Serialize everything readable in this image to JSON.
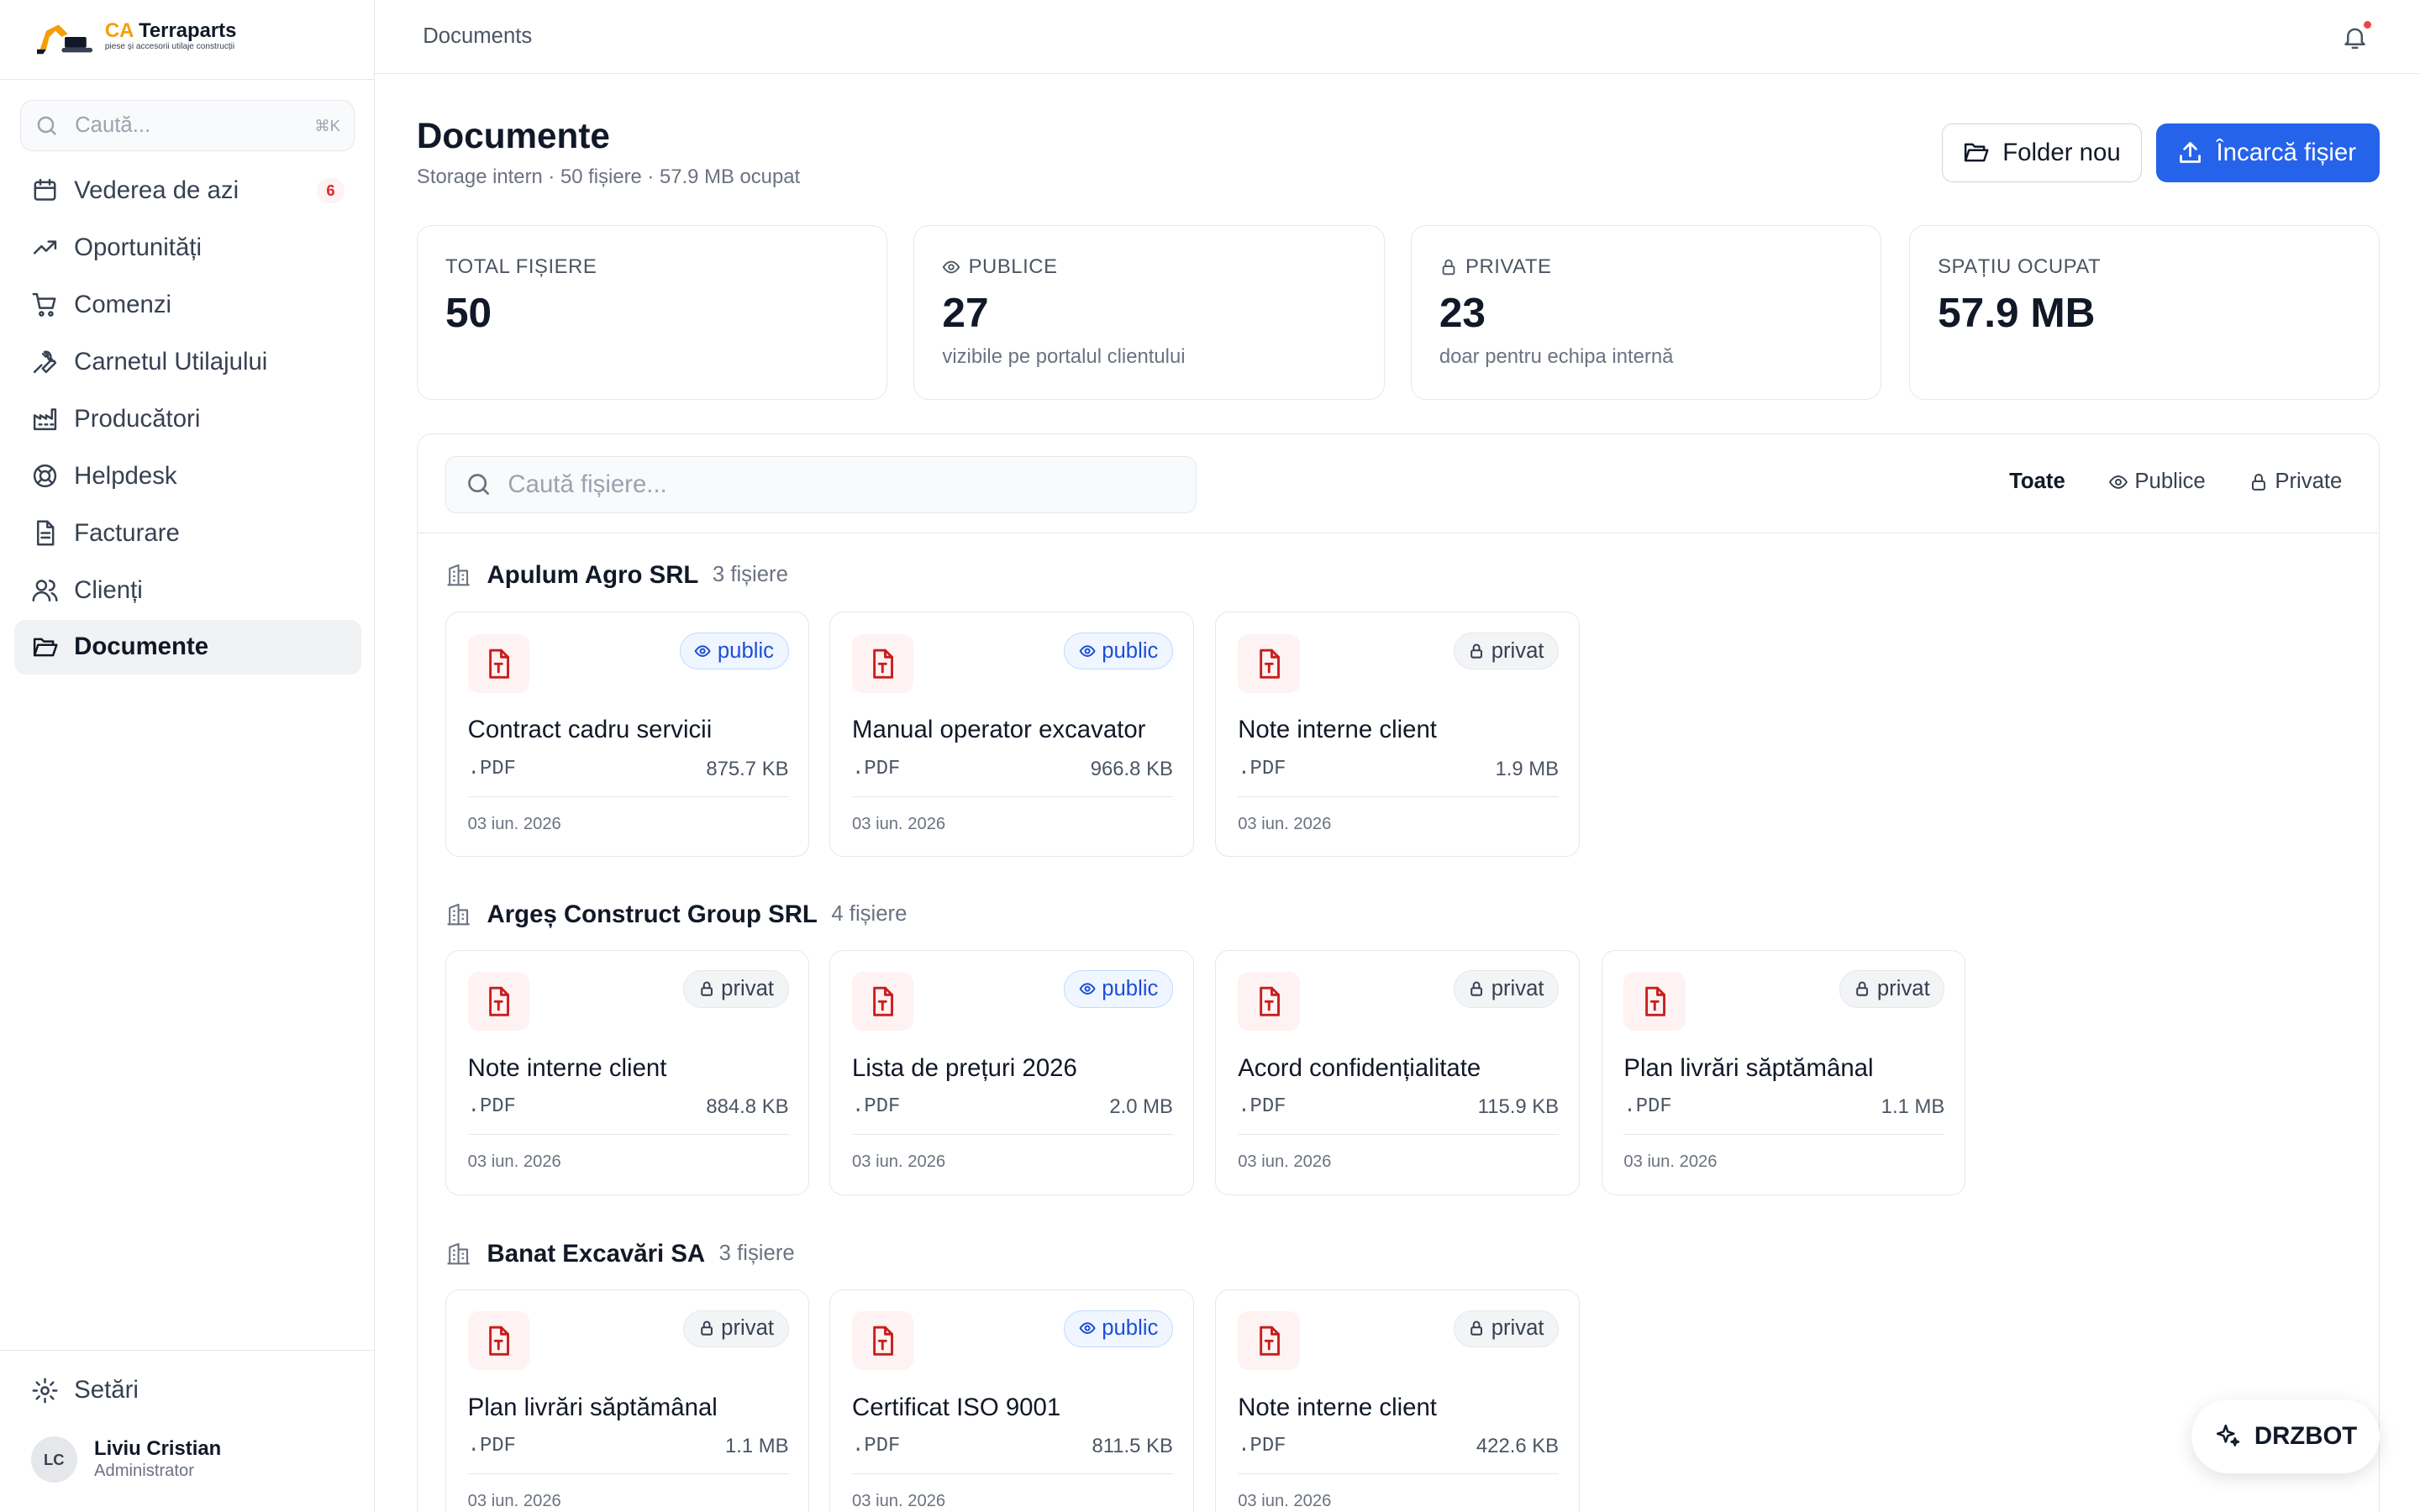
{
  "brand": {
    "name_accent": "CA",
    "name": "Terraparts",
    "tagline": "piese și accesorii utilaje construcții"
  },
  "sidebar": {
    "search_placeholder": "Caută...",
    "search_shortcut": "⌘K",
    "items": [
      {
        "label": "Vederea de azi",
        "icon": "calendar-icon",
        "badge": "6"
      },
      {
        "label": "Oportunități",
        "icon": "trending-up-icon"
      },
      {
        "label": "Comenzi",
        "icon": "cart-icon"
      },
      {
        "label": "Carnetul Utilajului",
        "icon": "wrench-icon"
      },
      {
        "label": "Producători",
        "icon": "factory-icon"
      },
      {
        "label": "Helpdesk",
        "icon": "lifebuoy-icon"
      },
      {
        "label": "Facturare",
        "icon": "invoice-icon"
      },
      {
        "label": "Clienți",
        "icon": "users-icon"
      },
      {
        "label": "Documente",
        "icon": "folder-open-icon",
        "active": true
      }
    ],
    "settings_label": "Setări",
    "user": {
      "initials": "LC",
      "name": "Liviu Cristian",
      "role": "Administrator"
    }
  },
  "topbar": {
    "breadcrumb": "Documents"
  },
  "header": {
    "title": "Documente",
    "subtitle": "Storage intern · 50 fișiere · 57.9 MB ocupat",
    "folder_button": "Folder nou",
    "upload_button": "Încarcă fișier"
  },
  "stats": [
    {
      "label": "TOTAL FIȘIERE",
      "value": "50",
      "desc": ""
    },
    {
      "label": "PUBLICE",
      "value": "27",
      "desc": "vizibile pe portalul clientului"
    },
    {
      "label": "PRIVATE",
      "value": "23",
      "desc": "doar pentru echipa internă"
    },
    {
      "label": "SPAȚIU OCUPAT",
      "value": "57.9 MB",
      "desc": ""
    }
  ],
  "files": {
    "search_placeholder": "Caută fișiere...",
    "search_value": "",
    "filters": [
      "Toate",
      "Publice",
      "Private"
    ],
    "active_filter": "Toate"
  },
  "groups": [
    {
      "name": "Apulum Agro SRL",
      "count": "3 fișiere",
      "files": [
        {
          "title": "Contract cadru servicii",
          "ext": ".PDF",
          "size": "875.7 KB",
          "date": "03 iun. 2026",
          "visibility": "public"
        },
        {
          "title": "Manual operator excavator",
          "ext": ".PDF",
          "size": "966.8 KB",
          "date": "03 iun. 2026",
          "visibility": "public"
        },
        {
          "title": "Note interne client",
          "ext": ".PDF",
          "size": "1.9 MB",
          "date": "03 iun. 2026",
          "visibility": "privat"
        }
      ]
    },
    {
      "name": "Argeș Construct Group SRL",
      "count": "4 fișiere",
      "files": [
        {
          "title": "Note interne client",
          "ext": ".PDF",
          "size": "884.8 KB",
          "date": "03 iun. 2026",
          "visibility": "privat"
        },
        {
          "title": "Lista de prețuri 2026",
          "ext": ".PDF",
          "size": "2.0 MB",
          "date": "03 iun. 2026",
          "visibility": "public"
        },
        {
          "title": "Acord confidențialitate",
          "ext": ".PDF",
          "size": "115.9 KB",
          "date": "03 iun. 2026",
          "visibility": "privat"
        },
        {
          "title": "Plan livrări săptămânal",
          "ext": ".PDF",
          "size": "1.1 MB",
          "date": "03 iun. 2026",
          "visibility": "privat"
        }
      ]
    },
    {
      "name": "Banat Excavări SA",
      "count": "3 fișiere",
      "files": [
        {
          "title": "Plan livrări săptămânal",
          "ext": ".PDF",
          "size": "1.1 MB",
          "date": "03 iun. 2026",
          "visibility": "privat"
        },
        {
          "title": "Certificat ISO 9001",
          "ext": ".PDF",
          "size": "811.5 KB",
          "date": "03 iun. 2026",
          "visibility": "public"
        },
        {
          "title": "Note interne client",
          "ext": ".PDF",
          "size": "422.6 KB",
          "date": "03 iun. 2026",
          "visibility": "privat"
        }
      ]
    }
  ],
  "assistant": {
    "label": "DRZBOT"
  },
  "colors": {
    "primary": "#2563eb",
    "danger": "#dc2626",
    "file_icon": "#c81e1e"
  }
}
